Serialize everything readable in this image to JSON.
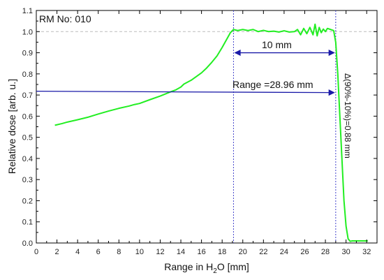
{
  "chart_data": {
    "type": "line",
    "title": "",
    "xlabel": "Range in H₂O [mm]",
    "xlabel_parts": {
      "pre": "Range in H",
      "sub": "2",
      "post": "O [mm]"
    },
    "ylabel": "Relative dose [arb. u.]",
    "xlim": [
      0,
      33
    ],
    "ylim": [
      0.0,
      1.1
    ],
    "xticks": [
      0,
      2,
      4,
      6,
      8,
      10,
      12,
      14,
      16,
      18,
      20,
      22,
      24,
      26,
      28,
      30,
      32
    ],
    "yticks": [
      0.0,
      0.1,
      0.2,
      0.3,
      0.4,
      0.5,
      0.6,
      0.7,
      0.8,
      0.9,
      1.0,
      1.1
    ],
    "ytick_labels": [
      "0.0",
      "0.1",
      "0.2",
      "0.3",
      "0.4",
      "0.5",
      "0.6",
      "0.7",
      "0.8",
      "0.9",
      "1.0",
      "1.1"
    ],
    "grid": false,
    "reference_line_y": 1.0,
    "series": [
      {
        "color": "#22ee22",
        "x": [
          1.8,
          2.5,
          3.0,
          4.0,
          5.0,
          6.0,
          7.0,
          8.0,
          9.0,
          9.5,
          10.0,
          11.0,
          12.0,
          13.0,
          13.5,
          14.0,
          14.3,
          15.0,
          16.0,
          16.5,
          17.0,
          17.5,
          18.0,
          18.4,
          18.8,
          19.1,
          19.5,
          20.0,
          20.5,
          21.0,
          21.5,
          22.0,
          22.5,
          23.0,
          23.5,
          24.0,
          24.5,
          25.0,
          25.3,
          25.6,
          25.9,
          26.2,
          26.5,
          26.8,
          27.0,
          27.2,
          27.4,
          27.6,
          27.8,
          28.0,
          28.2,
          28.5,
          28.8,
          29.0,
          29.2,
          29.4,
          29.6,
          29.8,
          30.0,
          30.2,
          30.4,
          30.6,
          31.0,
          31.5,
          32.1
        ],
        "y": [
          0.557,
          0.565,
          0.572,
          0.583,
          0.595,
          0.61,
          0.624,
          0.637,
          0.648,
          0.655,
          0.66,
          0.678,
          0.695,
          0.715,
          0.724,
          0.738,
          0.752,
          0.77,
          0.805,
          0.828,
          0.855,
          0.885,
          0.925,
          0.96,
          0.995,
          1.01,
          1.005,
          1.01,
          1.005,
          1.01,
          1.0,
          1.006,
          1.0,
          1.002,
          0.998,
          1.004,
          0.998,
          1.0,
          1.01,
          0.985,
          1.015,
          0.99,
          1.02,
          0.985,
          1.035,
          0.98,
          1.02,
          0.995,
          1.012,
          1.0,
          1.015,
          1.01,
          1.005,
          0.95,
          0.8,
          0.6,
          0.4,
          0.2,
          0.08,
          0.02,
          0.008,
          0.01,
          0.01,
          0.01,
          0.01
        ]
      }
    ],
    "markers": [
      {
        "x": 19.1,
        "style": "vertical-dotted",
        "color": "#4444cc"
      },
      {
        "x": 29.0,
        "style": "vertical-dotted",
        "color": "#4444cc"
      }
    ],
    "annotations": {
      "rm_label": "RM No: 010",
      "width_label": "10 mm",
      "width_arrow": {
        "x1": 19.1,
        "x2": 29.0,
        "y": 0.9
      },
      "range_label": "Range =28.96 mm",
      "range_arrow": {
        "x1": 0.0,
        "x2": 29.0,
        "y": 0.718
      },
      "falloff_label": "Δ(90%-10%)=0.88 mm"
    }
  }
}
